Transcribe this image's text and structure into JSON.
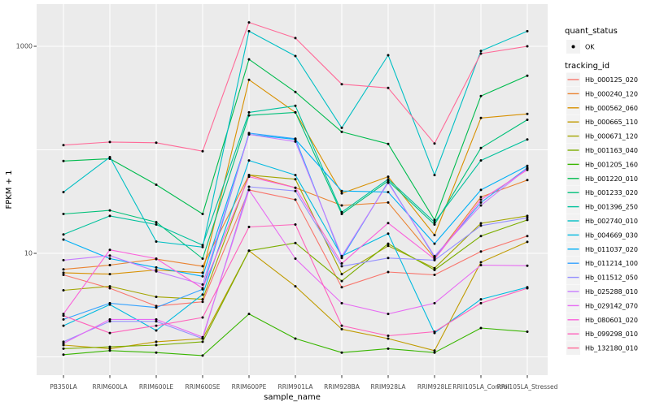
{
  "figure": {
    "background": "#FFFFFF",
    "panel_background": "#EBEBEB",
    "grid_color": "#FFFFFF",
    "tick_color": "#333333",
    "tick_label_color": "#4D4D4D",
    "axis_title_color": "#000000",
    "point_color": "#000000",
    "legend_key_fill": "#F2F2F2"
  },
  "y_axis": {
    "title": "FPKM + 1",
    "scale": "log10",
    "tick_labels": [
      {
        "label": "1000",
        "value": 1000
      },
      {
        "label": "10",
        "value": 10
      }
    ],
    "gridline_values": [
      1,
      10,
      100,
      1000
    ]
  },
  "x_axis": {
    "title": "sample_name",
    "categories": [
      "PB350LA",
      "RRIM600LA",
      "RRIM600LE",
      "RRIM600SE",
      "RRIM600PE",
      "RRIM901LA",
      "RRIM928BA",
      "RRIM928LA",
      "RRIM928LE",
      "RRII105LA_Control",
      "RRII105LA_Stressed"
    ]
  },
  "legend": {
    "quant_status_title": "quant_status",
    "quant_status_items": [
      {
        "label": "OK",
        "symbol": "point"
      }
    ],
    "tracking_id_title": "tracking_id"
  },
  "chart_data": {
    "type": "line",
    "title": "",
    "xlabel": "sample_name",
    "ylabel": "FPKM + 1",
    "y_scale": "log10",
    "ylim": [
      0.67,
      2500
    ],
    "y_ticks_labeled": [
      10,
      1000
    ],
    "grid": true,
    "legend_position": "right",
    "point_shape": "black-dot",
    "categories": [
      "PB350LA",
      "RRIM600LA",
      "RRIM600LE",
      "RRIM600SE",
      "RRIM600PE",
      "RRIM901LA",
      "RRIM928BA",
      "RRIM928LA",
      "RRIM928LE",
      "RRII105LA_Control",
      "RRII105LA_Stressed"
    ],
    "series": [
      {
        "name": "Hb_000125_020",
        "color": "#F8766D",
        "values": [
          6.2,
          4.6,
          3.1,
          3.4,
          41,
          33,
          4.7,
          6.6,
          6.2,
          10.4,
          14.7
        ]
      },
      {
        "name": "Hb_000240_120",
        "color": "#EA8331",
        "values": [
          7.0,
          7.7,
          8.8,
          7.5,
          57,
          43,
          29,
          31,
          9.0,
          35,
          51
        ]
      },
      {
        "name": "Hb_000562_060",
        "color": "#D89000",
        "values": [
          6.5,
          6.3,
          6.9,
          6.5,
          475,
          230,
          38,
          55,
          15,
          203,
          222
        ]
      },
      {
        "name": "Hb_000665_110",
        "color": "#C09B00",
        "values": [
          1.3,
          1.2,
          1.4,
          1.5,
          10.6,
          4.8,
          1.85,
          1.5,
          1.15,
          8.2,
          12.9
        ]
      },
      {
        "name": "Hb_000671_120",
        "color": "#A3A500",
        "values": [
          4.4,
          4.8,
          3.8,
          3.6,
          57,
          52,
          6.3,
          11.8,
          7.2,
          19.5,
          23
        ]
      },
      {
        "name": "Hb_001163_040",
        "color": "#7CAE00",
        "values": [
          1.2,
          1.25,
          1.3,
          1.4,
          10.6,
          12.6,
          5.4,
          12.4,
          6.9,
          14.7,
          21
        ]
      },
      {
        "name": "Hb_001205_160",
        "color": "#39B600",
        "values": [
          1.05,
          1.15,
          1.1,
          1.03,
          2.6,
          1.5,
          1.1,
          1.2,
          1.1,
          1.9,
          1.75
        ]
      },
      {
        "name": "Hb_001220_010",
        "color": "#00BB4E",
        "values": [
          78,
          82,
          46,
          24,
          748,
          362,
          149,
          114,
          21,
          331,
          520
        ]
      },
      {
        "name": "Hb_001233_020",
        "color": "#00C079",
        "values": [
          24,
          26,
          20,
          8.9,
          215,
          230,
          24,
          50,
          19,
          104,
          195
        ]
      },
      {
        "name": "Hb_001396_250",
        "color": "#00C19C",
        "values": [
          15.2,
          23,
          19,
          12,
          230,
          266,
          25,
          52,
          20,
          79,
          126
        ]
      },
      {
        "name": "Hb_002740_010",
        "color": "#00BFC4",
        "values": [
          39,
          85,
          13,
          11.5,
          1400,
          805,
          163,
          820,
          57,
          900,
          1400
        ]
      },
      {
        "name": "Hb_004669_030",
        "color": "#00BAE0",
        "values": [
          2.0,
          3.2,
          1.8,
          4.0,
          79,
          57,
          9.4,
          15.5,
          1.7,
          3.6,
          4.7
        ]
      },
      {
        "name": "Hb_011037_020",
        "color": "#00B0F6",
        "values": [
          13.6,
          8.9,
          7.3,
          6.0,
          141,
          126,
          40,
          39,
          12.4,
          41,
          70
        ]
      },
      {
        "name": "Hb_011214_100",
        "color": "#35A2FF",
        "values": [
          2.3,
          3.3,
          3.0,
          4.5,
          145,
          128,
          9.0,
          49,
          9.2,
          31,
          67
        ]
      },
      {
        "name": "Hb_011512_050",
        "color": "#9590FF",
        "values": [
          1.4,
          2.2,
          2.2,
          1.5,
          44,
          40,
          7.5,
          9.0,
          8.6,
          18.5,
          22
        ]
      },
      {
        "name": "Hb_025288_010",
        "color": "#C77CFF",
        "values": [
          8.6,
          9.5,
          6.7,
          5.0,
          141,
          120,
          9.4,
          48,
          9.4,
          29,
          66
        ]
      },
      {
        "name": "Hb_029142_070",
        "color": "#E76BF3",
        "values": [
          1.35,
          2.3,
          2.3,
          1.55,
          41,
          8.9,
          3.3,
          2.6,
          3.3,
          7.7,
          7.6
        ]
      },
      {
        "name": "Hb_080601_020",
        "color": "#FA62DB",
        "values": [
          2.6,
          10.8,
          8.9,
          4.6,
          55,
          43,
          8.0,
          19.6,
          8.8,
          33,
          64
        ]
      },
      {
        "name": "Hb_099298_010",
        "color": "#FF62BC",
        "values": [
          2.5,
          1.7,
          2.0,
          2.4,
          18,
          19,
          2.0,
          1.6,
          1.75,
          3.3,
          4.6
        ]
      },
      {
        "name": "Hb_132180_010",
        "color": "#FF6A98",
        "values": [
          111,
          119,
          117,
          97,
          1700,
          1200,
          430,
          396,
          115,
          850,
          1000
        ]
      }
    ]
  }
}
